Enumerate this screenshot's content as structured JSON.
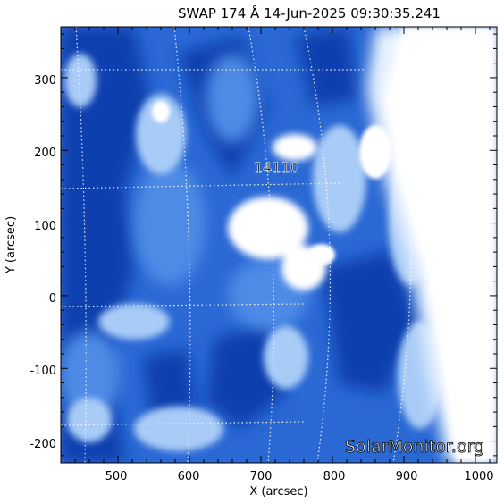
{
  "title": "SWAP 174 Å 14-Jun-2025 09:30:35.241",
  "xlabel": "X (arcsec)",
  "ylabel": "Y (arcsec)",
  "x_ticks": [
    "500",
    "600",
    "700",
    "800",
    "900",
    "1000"
  ],
  "y_ticks": [
    "300",
    "200",
    "100",
    "0",
    "-100",
    "-200"
  ],
  "x_range_arcsec": [
    420,
    1030
  ],
  "y_range_arcsec": [
    -230,
    370
  ],
  "active_region_label": "14110",
  "watermark": "SolarMonitor.org",
  "colors": {
    "dark_blue": "#0a3fae",
    "mid_blue": "#3d7fe0",
    "light_blue": "#9cc4f5",
    "white": "#ffffff"
  }
}
